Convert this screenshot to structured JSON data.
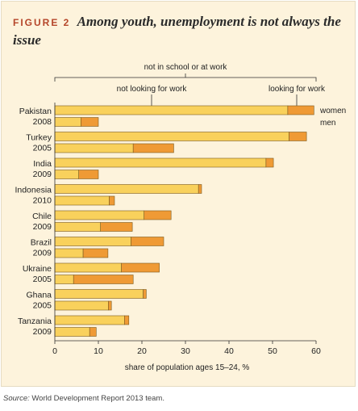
{
  "figure": {
    "label": "FIGURE 2",
    "title": "Among youth, unemployment is not always the issue"
  },
  "source": {
    "label": "Source:",
    "text": "World Development Report 2013 team."
  },
  "annotations": {
    "bracket": "not in school or at work",
    "not_looking": "not looking for work",
    "looking": "looking for work",
    "women": "women",
    "men": "men"
  },
  "colors": {
    "not_looking": "#f9d15c",
    "looking": "#ef9a35",
    "bar_stroke": "#7a5a1e",
    "axis": "#333333",
    "background": "#fdf3dc"
  },
  "chart_data": {
    "type": "bar",
    "orientation": "horizontal",
    "stacked": true,
    "xlabel": "share of population ages 15–24, %",
    "xlim": [
      0,
      60
    ],
    "xticks": [
      0,
      10,
      20,
      30,
      40,
      50,
      60
    ],
    "grid": false,
    "categories": [
      {
        "country": "Pakistan",
        "year": "2008"
      },
      {
        "country": "Turkey",
        "year": "2005"
      },
      {
        "country": "India",
        "year": "2009"
      },
      {
        "country": "Indonesia",
        "year": "2010"
      },
      {
        "country": "Chile",
        "year": "2009"
      },
      {
        "country": "Brazil",
        "year": "2009"
      },
      {
        "country": "Ukraine",
        "year": "2005"
      },
      {
        "country": "Ghana",
        "year": "2005"
      },
      {
        "country": "Tanzania",
        "year": "2009"
      }
    ],
    "series": [
      {
        "name": "women",
        "not_looking": [
          53.5,
          53.8,
          48.5,
          33.0,
          20.5,
          17.5,
          15.3,
          20.3,
          16.0
        ],
        "looking": [
          6.0,
          4.0,
          1.7,
          0.7,
          6.2,
          7.5,
          8.7,
          0.7,
          1.0
        ]
      },
      {
        "name": "men",
        "not_looking": [
          6.0,
          18.0,
          5.5,
          12.5,
          10.5,
          6.5,
          4.3,
          12.3,
          8.0
        ],
        "looking": [
          4.0,
          9.3,
          4.5,
          1.2,
          7.3,
          5.7,
          13.7,
          0.7,
          1.5
        ]
      }
    ]
  }
}
